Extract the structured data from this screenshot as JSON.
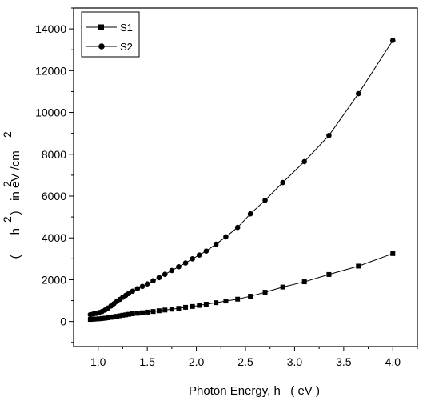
{
  "chart_data": {
    "type": "scatter",
    "xlabel": "Photon Energy, h   ( eV )",
    "ylabel": "(      h    )   in eV /cm",
    "ylabel_sup1": "2",
    "ylabel_sup2": "2",
    "ylabel_sup3": "2",
    "xlim": [
      0.75,
      4.25
    ],
    "ylim": [
      -1200,
      15000
    ],
    "xticks": [
      1.0,
      1.5,
      2.0,
      2.5,
      3.0,
      3.5,
      4.0
    ],
    "xtick_labels": [
      "1.0",
      "1.5",
      "2.0",
      "2.5",
      "3.0",
      "3.5",
      "4.0"
    ],
    "yticks": [
      0,
      2000,
      4000,
      6000,
      8000,
      10000,
      12000,
      14000
    ],
    "ytick_labels": [
      "0",
      "2000",
      "4000",
      "6000",
      "8000",
      "10000",
      "12000",
      "14000"
    ],
    "grid": false,
    "legend": "top-left",
    "series": [
      {
        "name": "S1",
        "marker": "square",
        "color": "#000000",
        "x": [
          0.92,
          0.95,
          0.98,
          1.01,
          1.04,
          1.07,
          1.1,
          1.13,
          1.16,
          1.19,
          1.22,
          1.25,
          1.28,
          1.31,
          1.35,
          1.4,
          1.45,
          1.5,
          1.56,
          1.62,
          1.68,
          1.75,
          1.82,
          1.89,
          1.96,
          2.03,
          2.1,
          2.2,
          2.3,
          2.42,
          2.55,
          2.7,
          2.88,
          3.1,
          3.35,
          3.65,
          4.0
        ],
        "y": [
          100,
          110,
          120,
          130,
          145,
          160,
          180,
          200,
          225,
          250,
          275,
          300,
          320,
          345,
          370,
          395,
          420,
          450,
          480,
          515,
          550,
          590,
          630,
          680,
          720,
          770,
          830,
          900,
          980,
          1070,
          1210,
          1400,
          1650,
          1900,
          2250,
          2650,
          3250
        ]
      },
      {
        "name": "S2",
        "marker": "circle",
        "color": "#000000",
        "x": [
          0.92,
          0.95,
          0.98,
          1.01,
          1.04,
          1.07,
          1.1,
          1.13,
          1.16,
          1.19,
          1.22,
          1.25,
          1.28,
          1.31,
          1.35,
          1.4,
          1.45,
          1.5,
          1.56,
          1.62,
          1.68,
          1.75,
          1.82,
          1.89,
          1.96,
          2.03,
          2.1,
          2.2,
          2.3,
          2.42,
          2.55,
          2.7,
          2.88,
          3.1,
          3.35,
          3.65,
          4.0
        ],
        "y": [
          330,
          360,
          390,
          430,
          480,
          550,
          640,
          740,
          850,
          960,
          1060,
          1160,
          1250,
          1340,
          1450,
          1570,
          1680,
          1800,
          1950,
          2100,
          2260,
          2440,
          2620,
          2800,
          3000,
          3180,
          3370,
          3700,
          4050,
          4500,
          5150,
          5800,
          6650,
          7650,
          8900,
          10900,
          13450
        ]
      }
    ]
  }
}
